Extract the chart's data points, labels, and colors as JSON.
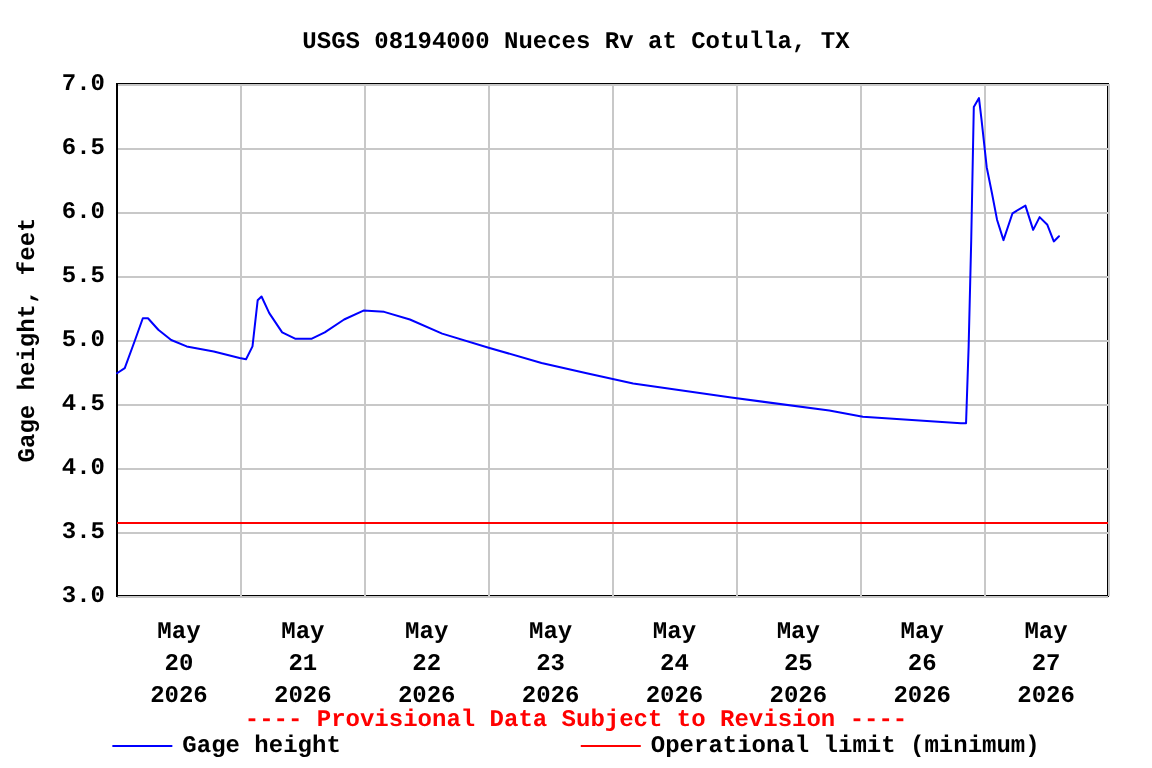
{
  "chart_data": {
    "type": "line",
    "title": "USGS 08194000 Nueces Rv at Cotulla, TX",
    "ylabel": "Gage height, feet",
    "annotations": [
      "---- Provisional Data Subject to Revision ----"
    ],
    "x": [
      "2026-05-20T00:00",
      "2026-05-20T01:30",
      "2026-05-20T03:30",
      "2026-05-20T05:00",
      "2026-05-20T06:00",
      "2026-05-20T08:00",
      "2026-05-20T10:30",
      "2026-05-20T13:30",
      "2026-05-20T18:45",
      "2026-05-20T23:45",
      "2026-05-21T01:00",
      "2026-05-21T02:15",
      "2026-05-21T03:15",
      "2026-05-21T04:00",
      "2026-05-21T05:30",
      "2026-05-21T08:00",
      "2026-05-21T10:30",
      "2026-05-21T13:45",
      "2026-05-21T16:15",
      "2026-05-21T20:00",
      "2026-05-21T23:45",
      "2026-05-22T03:45",
      "2026-05-22T08:45",
      "2026-05-22T15:00",
      "2026-05-23T00:00",
      "2026-05-23T10:15",
      "2026-05-23T19:00",
      "2026-05-24T04:00",
      "2026-05-24T23:00",
      "2026-05-25T18:00",
      "2026-05-26T00:30",
      "2026-05-26T19:30",
      "2026-05-26T20:30",
      "2026-05-26T21:00",
      "2026-05-26T21:30",
      "2026-05-26T22:00",
      "2026-05-26T23:00",
      "2026-05-26T23:30",
      "2026-05-27T00:30",
      "2026-05-27T01:30",
      "2026-05-27T02:30",
      "2026-05-27T03:45",
      "2026-05-27T05:30",
      "2026-05-27T08:00",
      "2026-05-27T09:30",
      "2026-05-27T10:45",
      "2026-05-27T12:15",
      "2026-05-27T13:30",
      "2026-05-27T14:30"
    ],
    "series": [
      {
        "name": "Gage height",
        "color": "#0000ff",
        "values": [
          4.74,
          4.78,
          5.0,
          5.17,
          5.17,
          5.08,
          5.0,
          4.95,
          4.91,
          4.86,
          4.85,
          4.95,
          5.31,
          5.34,
          5.21,
          5.06,
          5.01,
          5.01,
          5.06,
          5.16,
          5.23,
          5.22,
          5.16,
          5.05,
          4.94,
          4.82,
          4.74,
          4.66,
          4.55,
          4.45,
          4.4,
          4.35,
          4.35,
          4.95,
          5.78,
          6.82,
          6.89,
          6.72,
          6.35,
          6.15,
          5.94,
          5.78,
          5.99,
          6.05,
          5.86,
          5.96,
          5.9,
          5.77,
          5.81
        ]
      }
    ],
    "ref_lines": [
      {
        "axis": "y",
        "value": 3.58,
        "label": "Operational limit (minimum)",
        "color": "#ff0000"
      }
    ],
    "xlim": [
      "2026-05-20T00:00",
      "2026-05-28T00:00"
    ],
    "xticks": [
      {
        "value": "2026-05-20T12:00",
        "label": "May\n20\n2026"
      },
      {
        "value": "2026-05-21T12:00",
        "label": "May\n21\n2026"
      },
      {
        "value": "2026-05-22T12:00",
        "label": "May\n22\n2026"
      },
      {
        "value": "2026-05-23T12:00",
        "label": "May\n23\n2026"
      },
      {
        "value": "2026-05-24T12:00",
        "label": "May\n24\n2026"
      },
      {
        "value": "2026-05-25T12:00",
        "label": "May\n25\n2026"
      },
      {
        "value": "2026-05-26T12:00",
        "label": "May\n26\n2026"
      },
      {
        "value": "2026-05-27T12:00",
        "label": "May\n27\n2026"
      },
      {
        "value": "2026-05-21T00:00",
        "label": null
      },
      {
        "value": "2026-05-22T00:00",
        "label": null
      },
      {
        "value": "2026-05-23T00:00",
        "label": null
      },
      {
        "value": "2026-05-24T00:00",
        "label": null
      },
      {
        "value": "2026-05-25T00:00",
        "label": null
      },
      {
        "value": "2026-05-26T00:00",
        "label": null
      },
      {
        "value": "2026-05-27T00:00",
        "label": null
      }
    ],
    "ylim": [
      3.0,
      7.0
    ],
    "yticks": [
      {
        "value": 3.0,
        "label": "3.0"
      },
      {
        "value": 3.5,
        "label": "3.5"
      },
      {
        "value": 4.0,
        "label": "4.0"
      },
      {
        "value": 4.5,
        "label": "4.5"
      },
      {
        "value": 5.0,
        "label": "5.0"
      },
      {
        "value": 5.5,
        "label": "5.5"
      },
      {
        "value": 6.0,
        "label": "6.0"
      },
      {
        "value": 6.5,
        "label": "6.5"
      },
      {
        "value": 7.0,
        "label": "7.0"
      }
    ],
    "grid": true,
    "legend": "bottom",
    "marker": "none",
    "line_style": "solid"
  }
}
